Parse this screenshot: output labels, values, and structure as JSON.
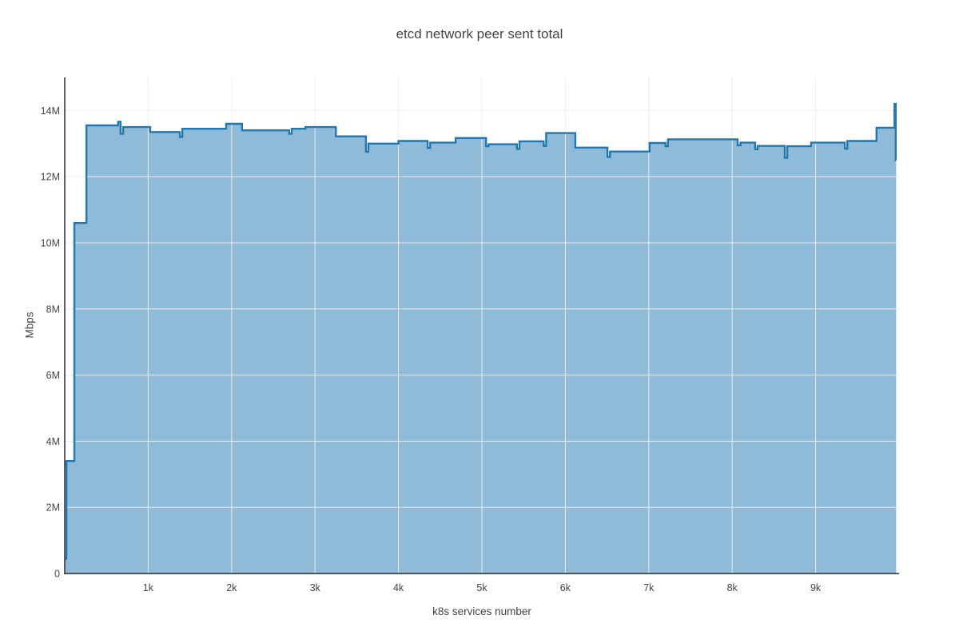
{
  "chart_data": {
    "type": "area",
    "title": "etcd network peer sent total",
    "xlabel": "k8s services number",
    "ylabel": "Mbps",
    "line_shape": "hv",
    "grid": true,
    "legend": false,
    "xlim": [
      0,
      10000
    ],
    "ylim_M": [
      0,
      15
    ],
    "x_end": 9965,
    "x_ticks": [
      [
        1000,
        "1k"
      ],
      [
        2000,
        "2k"
      ],
      [
        3000,
        "3k"
      ],
      [
        4000,
        "4k"
      ],
      [
        5000,
        "5k"
      ],
      [
        6000,
        "6k"
      ],
      [
        7000,
        "7k"
      ],
      [
        8000,
        "8k"
      ],
      [
        9000,
        "9k"
      ]
    ],
    "y_ticks": [
      [
        0,
        "0"
      ],
      [
        2,
        "2M"
      ],
      [
        4,
        "4M"
      ],
      [
        6,
        "6M"
      ],
      [
        8,
        "8M"
      ],
      [
        10,
        "10M"
      ],
      [
        12,
        "12M"
      ],
      [
        14,
        "14M"
      ]
    ],
    "line_color": "#1f77b4",
    "fill_color": "rgba(31,119,180,0.5)",
    "grid_color": "#ececec",
    "axis_color": "#444444",
    "text_color": "#444444",
    "series": [
      {
        "points_format": "[k8s_services, mbps_millions]",
        "points": [
          [
            0,
            0.45
          ],
          [
            20,
            3.4
          ],
          [
            115,
            10.6
          ],
          [
            260,
            13.55
          ],
          [
            640,
            13.66
          ],
          [
            670,
            13.3
          ],
          [
            700,
            13.5
          ],
          [
            1025,
            13.35
          ],
          [
            1380,
            13.2
          ],
          [
            1410,
            13.45
          ],
          [
            1935,
            13.6
          ],
          [
            2125,
            13.4
          ],
          [
            2690,
            13.3
          ],
          [
            2720,
            13.45
          ],
          [
            2885,
            13.5
          ],
          [
            3250,
            13.22
          ],
          [
            3610,
            12.75
          ],
          [
            3640,
            13.0
          ],
          [
            4000,
            13.08
          ],
          [
            4350,
            12.87
          ],
          [
            4380,
            13.03
          ],
          [
            4685,
            13.17
          ],
          [
            5050,
            12.92
          ],
          [
            5080,
            12.98
          ],
          [
            5420,
            12.84
          ],
          [
            5450,
            13.07
          ],
          [
            5740,
            12.93
          ],
          [
            5770,
            13.32
          ],
          [
            6120,
            12.88
          ],
          [
            6505,
            12.6
          ],
          [
            6535,
            12.76
          ],
          [
            7010,
            13.02
          ],
          [
            7200,
            12.92
          ],
          [
            7230,
            13.13
          ],
          [
            8065,
            12.95
          ],
          [
            8100,
            13.03
          ],
          [
            8275,
            12.83
          ],
          [
            8305,
            12.93
          ],
          [
            8630,
            12.57
          ],
          [
            8660,
            12.92
          ],
          [
            8945,
            13.03
          ],
          [
            9350,
            12.85
          ],
          [
            9380,
            13.08
          ],
          [
            9730,
            13.48
          ],
          [
            9945,
            14.2
          ],
          [
            9960,
            12.5
          ]
        ]
      }
    ]
  }
}
